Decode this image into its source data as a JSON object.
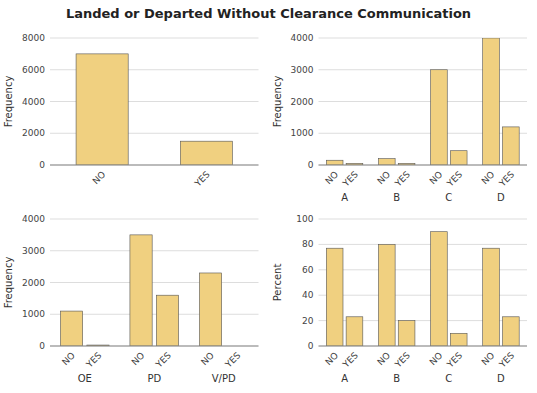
{
  "title": "Landed or Departed Without Clearance Communication",
  "chart_data": [
    {
      "type": "bar",
      "categories": [
        "NO",
        "YES"
      ],
      "values": [
        7000,
        1500
      ],
      "color": "#f0d080",
      "ylabel": "Frequency",
      "ylim": [
        0,
        8000
      ],
      "yticks": [
        0,
        2000,
        4000,
        6000,
        8000
      ],
      "grid": true
    },
    {
      "type": "bar",
      "categories": [
        "A",
        "B",
        "C",
        "D"
      ],
      "series": [
        {
          "name": "NO",
          "color": "#f0d080",
          "values": [
            150,
            200,
            3000,
            4000
          ]
        },
        {
          "name": "YES",
          "color": "#f0d080",
          "values": [
            50,
            50,
            450,
            1200
          ]
        }
      ],
      "ylabel": "Frequency",
      "ylim": [
        0,
        4000
      ],
      "yticks": [
        0,
        1000,
        2000,
        3000,
        4000
      ],
      "grid": true
    },
    {
      "type": "bar",
      "categories": [
        "OE",
        "PD",
        "V/PD"
      ],
      "series": [
        {
          "name": "NO",
          "color": "#f0d080",
          "values": [
            1100,
            3500,
            2300
          ]
        },
        {
          "name": "YES",
          "color": "#f0d080",
          "values": [
            30,
            1600,
            0
          ]
        }
      ],
      "ylabel": "Frequency",
      "ylim": [
        0,
        4000
      ],
      "yticks": [
        0,
        1000,
        2000,
        3000,
        4000
      ],
      "grid": true
    },
    {
      "type": "bar",
      "categories": [
        "A",
        "B",
        "C",
        "D"
      ],
      "series": [
        {
          "name": "NO",
          "color": "#f0d080",
          "values": [
            77,
            80,
            90,
            77
          ]
        },
        {
          "name": "YES",
          "color": "#f0d080",
          "values": [
            23,
            20,
            10,
            23
          ]
        }
      ],
      "ylabel": "Percent",
      "ylim": [
        0,
        100
      ],
      "yticks": [
        0,
        20,
        40,
        60,
        80,
        100
      ],
      "grid": true
    }
  ]
}
